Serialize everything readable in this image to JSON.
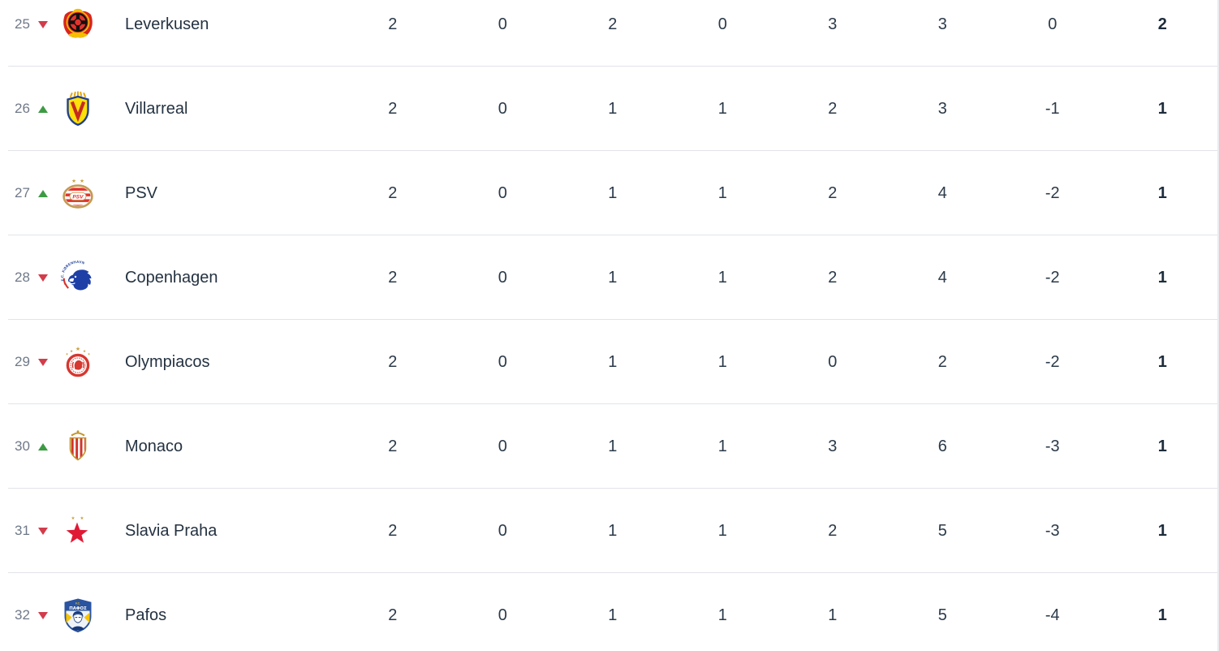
{
  "colors": {
    "background": "#ffffff",
    "rank_text": "#6f7988",
    "team_text": "#243241",
    "stat_text": "#2b3a49",
    "points_text": "#1d2c3b",
    "up_arrow": "#3d9b44",
    "down_arrow": "#d23c4b",
    "divider": "#e2e4e9"
  },
  "table": {
    "rows": [
      {
        "rank": "25",
        "movement": "down",
        "team": "Leverkusen",
        "logo": "leverkusen",
        "stats": [
          "2",
          "0",
          "2",
          "0",
          "3",
          "3",
          "0"
        ],
        "points": "2"
      },
      {
        "rank": "26",
        "movement": "up",
        "team": "Villarreal",
        "logo": "villarreal",
        "stats": [
          "2",
          "0",
          "1",
          "1",
          "2",
          "3",
          "-1"
        ],
        "points": "1"
      },
      {
        "rank": "27",
        "movement": "up",
        "team": "PSV",
        "logo": "psv",
        "stats": [
          "2",
          "0",
          "1",
          "1",
          "2",
          "4",
          "-2"
        ],
        "points": "1"
      },
      {
        "rank": "28",
        "movement": "down",
        "team": "Copenhagen",
        "logo": "copenhagen",
        "stats": [
          "2",
          "0",
          "1",
          "1",
          "2",
          "4",
          "-2"
        ],
        "points": "1"
      },
      {
        "rank": "29",
        "movement": "down",
        "team": "Olympiacos",
        "logo": "olympiacos",
        "stats": [
          "2",
          "0",
          "1",
          "1",
          "0",
          "2",
          "-2"
        ],
        "points": "1"
      },
      {
        "rank": "30",
        "movement": "up",
        "team": "Monaco",
        "logo": "monaco",
        "stats": [
          "2",
          "0",
          "1",
          "1",
          "3",
          "6",
          "-3"
        ],
        "points": "1"
      },
      {
        "rank": "31",
        "movement": "down",
        "team": "Slavia Praha",
        "logo": "slavia-praha",
        "stats": [
          "2",
          "0",
          "1",
          "1",
          "2",
          "5",
          "-3"
        ],
        "points": "1"
      },
      {
        "rank": "32",
        "movement": "down",
        "team": "Pafos",
        "logo": "pafos",
        "stats": [
          "2",
          "0",
          "1",
          "1",
          "1",
          "5",
          "-4"
        ],
        "points": "1"
      }
    ]
  },
  "logos": {
    "psv": {
      "label": "PSV"
    },
    "pafos": {
      "label": "ΠΑΦΟΣ",
      "label_top": "F.C."
    },
    "copenhagen": {
      "label": "F.C. KØBENHAVN"
    }
  }
}
